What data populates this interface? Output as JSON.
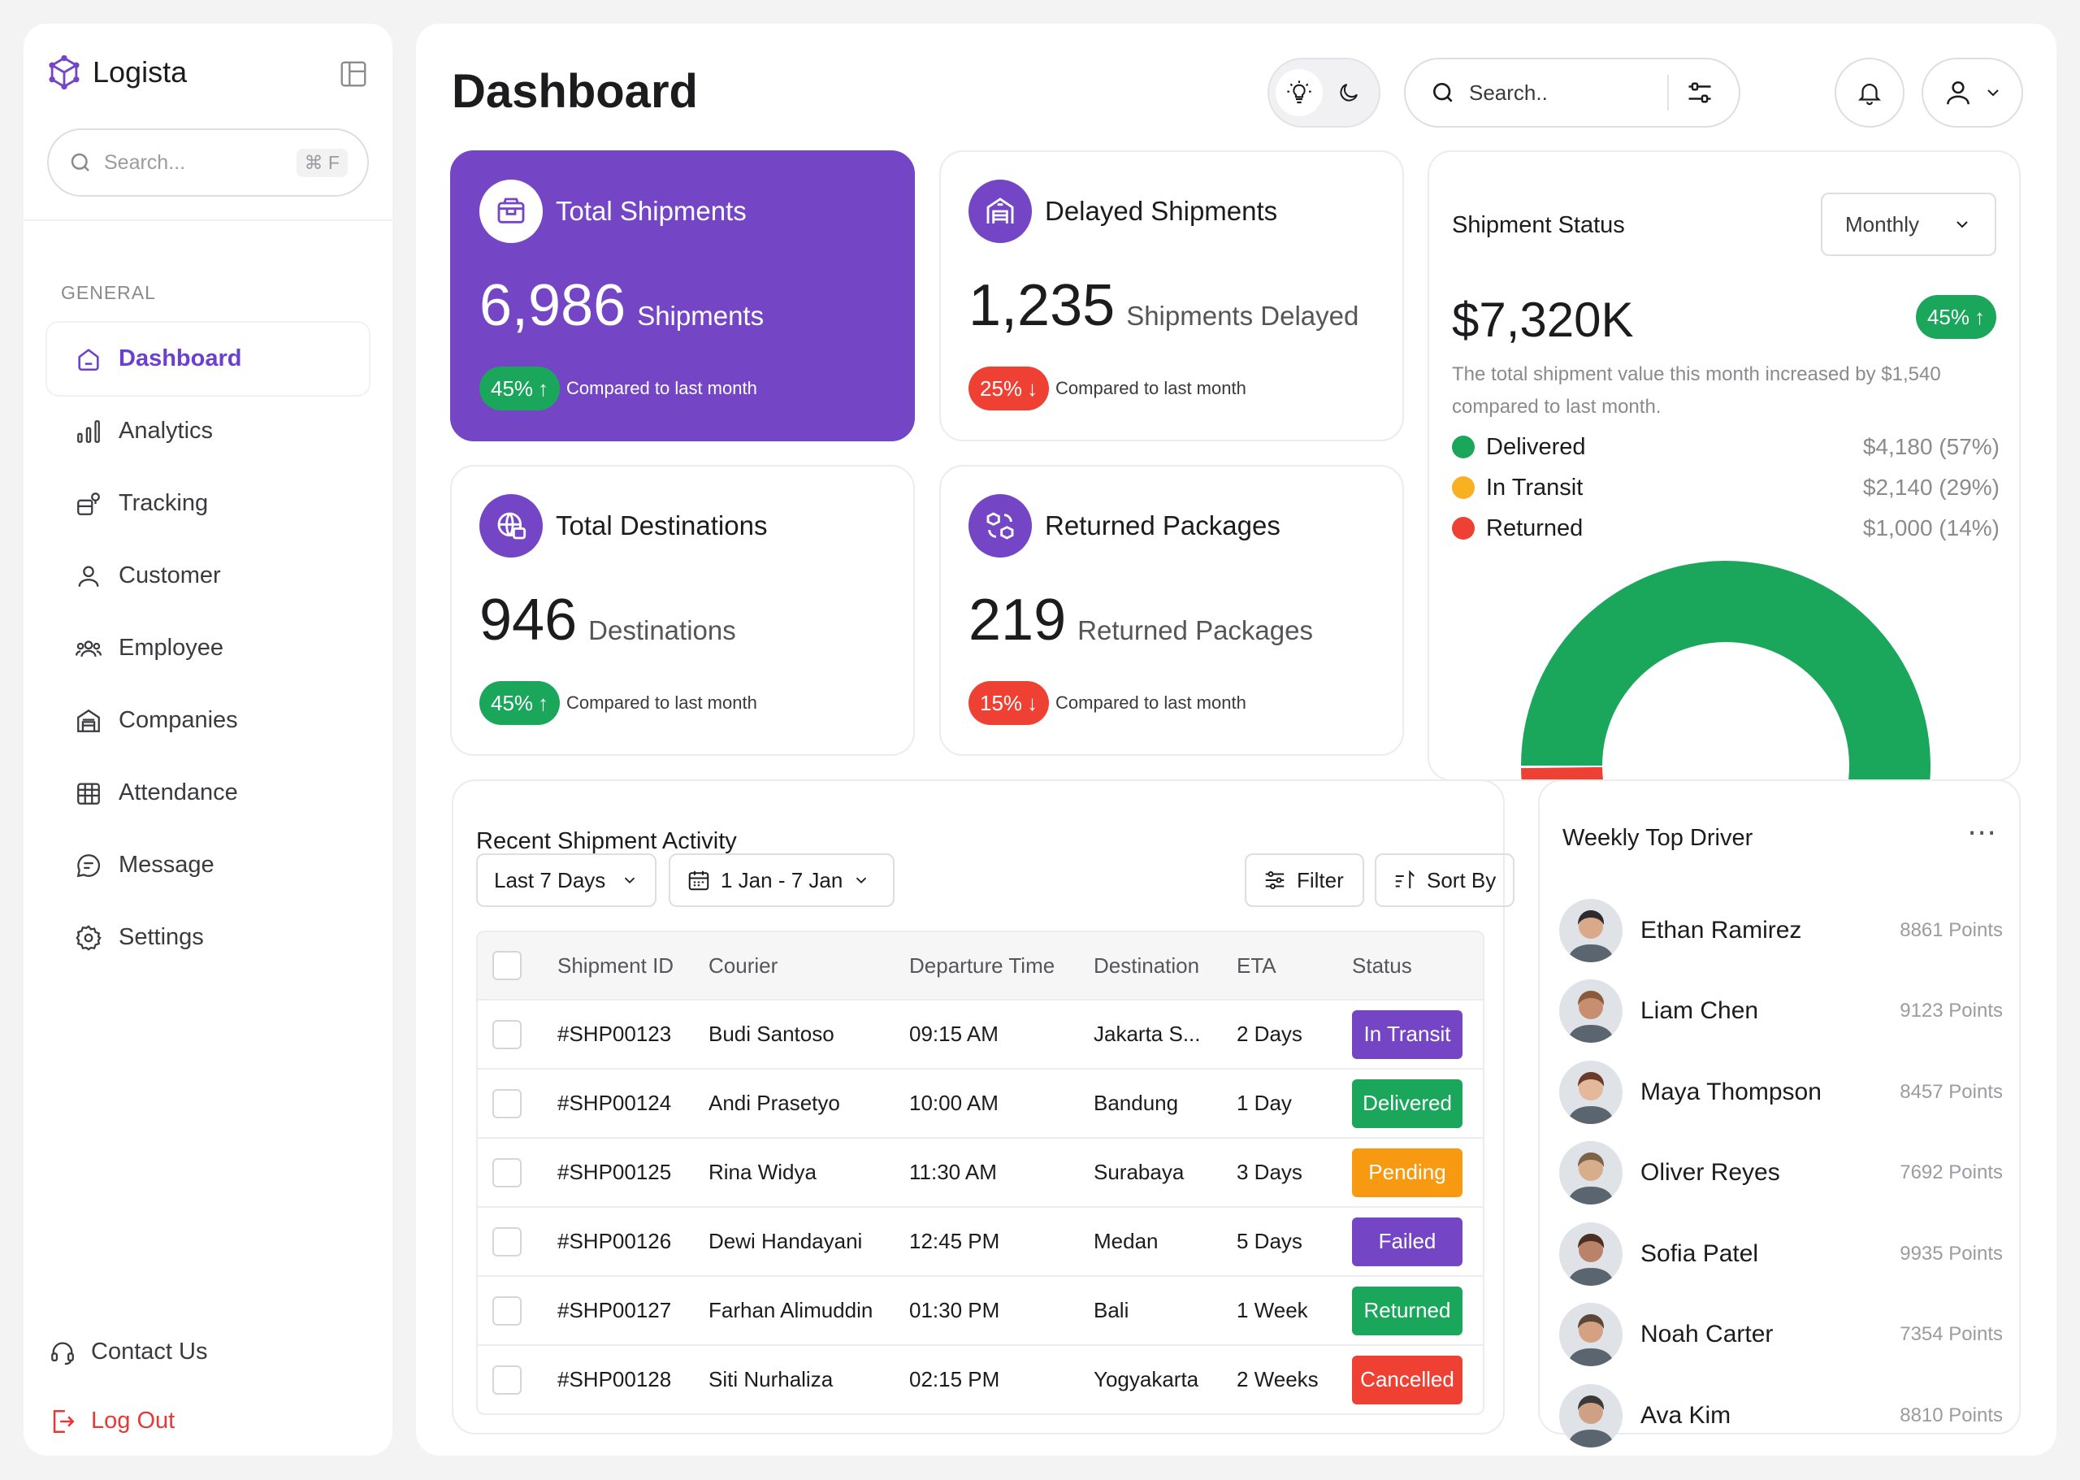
{
  "brand": {
    "name": "Logista"
  },
  "sidebar": {
    "search_placeholder": "Search...",
    "search_shortcut": "⌘ F",
    "group_label": "GENERAL",
    "items": [
      {
        "label": "Dashboard",
        "icon": "home-icon",
        "active": true
      },
      {
        "label": "Analytics",
        "icon": "bar-chart-icon"
      },
      {
        "label": "Tracking",
        "icon": "tracking-icon"
      },
      {
        "label": "Customer",
        "icon": "user-icon"
      },
      {
        "label": "Employee",
        "icon": "users-icon"
      },
      {
        "label": "Companies",
        "icon": "building-icon"
      },
      {
        "label": "Attendance",
        "icon": "calendar-grid-icon"
      },
      {
        "label": "Message",
        "icon": "chat-icon"
      },
      {
        "label": "Settings",
        "icon": "gear-icon"
      }
    ],
    "contact": "Contact Us",
    "logout": "Log Out"
  },
  "header": {
    "title": "Dashboard",
    "search_placeholder": "Search.."
  },
  "stats": [
    {
      "title": "Total Shipments",
      "value": "6,986",
      "unit": "Shipments",
      "change": "45%",
      "direction": "up",
      "compare": "Compared to last month",
      "icon": "package-icon"
    },
    {
      "title": "Delayed Shipments",
      "value": "1,235",
      "unit": "Shipments Delayed",
      "change": "25%",
      "direction": "down",
      "compare": "Compared to last month",
      "icon": "warehouse-icon"
    },
    {
      "title": "Total Destinations",
      "value": "946",
      "unit": "Destinations",
      "change": "45%",
      "direction": "up",
      "compare": "Compared to last month",
      "icon": "globe-icon"
    },
    {
      "title": "Returned Packages",
      "value": "219",
      "unit": "Returned Packages",
      "change": "15%",
      "direction": "down",
      "compare": "Compared to last month",
      "icon": "return-box-icon"
    }
  ],
  "shipment_status": {
    "title": "Shipment Status",
    "period": "Monthly",
    "value": "$7,320K",
    "change": "45%",
    "description": "The total shipment value this month increased by $1,540 compared to last month.",
    "legend": [
      {
        "name": "Delivered",
        "value": "$4,180 (57%)",
        "color": "#1aa65b"
      },
      {
        "name": "In Transit",
        "value": "$2,140 (29%)",
        "color": "#f9b022"
      },
      {
        "name": "Returned",
        "value": "$1,000 (14%)",
        "color": "#ef4034"
      }
    ],
    "chart_data": {
      "type": "pie",
      "categories": [
        "Delivered",
        "In Transit",
        "Returned"
      ],
      "values": [
        57,
        29,
        14
      ]
    }
  },
  "activity": {
    "title": "Recent Shipment Activity",
    "range": "Last 7 Days",
    "dates": "1 Jan - 7 Jan",
    "filter": "Filter",
    "sort": "Sort By",
    "columns": [
      "Shipment ID",
      "Courier",
      "Departure Time",
      "Destination",
      "ETA",
      "Status"
    ],
    "rows": [
      {
        "id": "#SHP00123",
        "courier": "Budi Santoso",
        "departure": "09:15 AM",
        "destination": "Jakarta S...",
        "eta": "2 Days",
        "status": "In Transit",
        "color": "#7446c6"
      },
      {
        "id": "#SHP00124",
        "courier": "Andi Prasetyo",
        "departure": "10:00 AM",
        "destination": "Bandung",
        "eta": "1 Day",
        "status": "Delivered",
        "color": "#1aa65b"
      },
      {
        "id": "#SHP00125",
        "courier": "Rina Widya",
        "departure": "11:30 AM",
        "destination": "Surabaya",
        "eta": "3 Days",
        "status": "Pending",
        "color": "#f79a12"
      },
      {
        "id": "#SHP00126",
        "courier": "Dewi Handayani",
        "departure": "12:45 PM",
        "destination": "Medan",
        "eta": "5 Days",
        "status": "Failed",
        "color": "#7446c6"
      },
      {
        "id": "#SHP00127",
        "courier": "Farhan Alimuddin",
        "departure": "01:30 PM",
        "destination": "Bali",
        "eta": "1 Week",
        "status": "Returned",
        "color": "#1aa65b"
      },
      {
        "id": "#SHP00128",
        "courier": "Siti Nurhaliza",
        "departure": "02:15 PM",
        "destination": "Yogyakarta",
        "eta": "2 Weeks",
        "status": "Cancelled",
        "color": "#ef4034"
      }
    ]
  },
  "drivers": {
    "title": "Weekly Top Driver",
    "list": [
      {
        "name": "Ethan Ramirez",
        "points": "8861 Points"
      },
      {
        "name": "Liam Chen",
        "points": "9123 Points"
      },
      {
        "name": "Maya Thompson",
        "points": "8457 Points"
      },
      {
        "name": "Oliver Reyes",
        "points": "7692 Points"
      },
      {
        "name": "Sofia Patel",
        "points": "9935 Points"
      },
      {
        "name": "Noah Carter",
        "points": "7354 Points"
      },
      {
        "name": "Ava Kim",
        "points": "8810 Points"
      }
    ]
  }
}
